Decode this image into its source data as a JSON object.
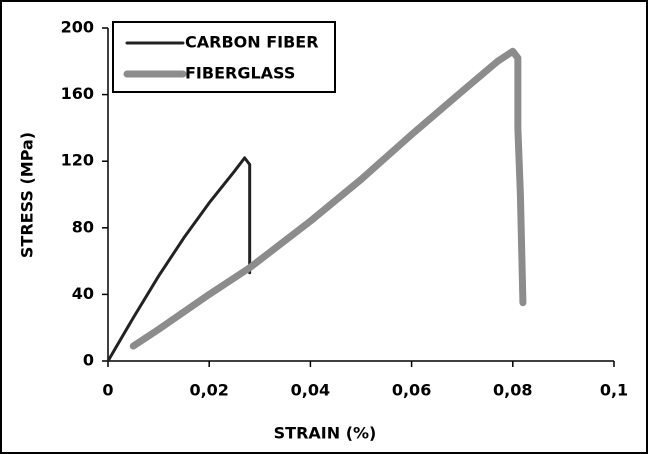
{
  "chart_data": {
    "type": "line",
    "x_label": "STRAIN (%)",
    "y_label": "STRESS (MPa)",
    "xlim": [
      0,
      0.1
    ],
    "ylim": [
      0,
      200
    ],
    "xticks": [
      0,
      {
        "value": 0.02,
        "label": "0,02"
      },
      {
        "value": 0.04,
        "label": "0,04"
      },
      {
        "value": 0.06,
        "label": "0,06"
      },
      {
        "value": 0.08,
        "label": "0,08"
      },
      {
        "value": 0.1,
        "label": "0,1"
      }
    ],
    "yticks": [
      0,
      40,
      80,
      120,
      160,
      200
    ],
    "legend": "upper left",
    "series": [
      {
        "name": "CARBON FIBER",
        "color": "#222222",
        "width": 3,
        "x": [
          0,
          0.005,
          0.01,
          0.015,
          0.02,
          0.025,
          0.027,
          0.028,
          0.028
        ],
        "values": [
          0,
          26,
          51,
          74,
          95,
          114,
          122,
          118,
          53
        ]
      },
      {
        "name": "FIBERGLASS",
        "color": "#8c8c8c",
        "width": 7,
        "x": [
          0.005,
          0.01,
          0.02,
          0.028,
          0.04,
          0.05,
          0.06,
          0.07,
          0.077,
          0.08,
          0.081,
          0.081,
          0.0815,
          0.082
        ],
        "values": [
          9,
          19,
          40,
          56,
          84,
          109,
          136,
          162,
          180,
          186,
          182,
          140,
          100,
          35
        ]
      }
    ]
  }
}
